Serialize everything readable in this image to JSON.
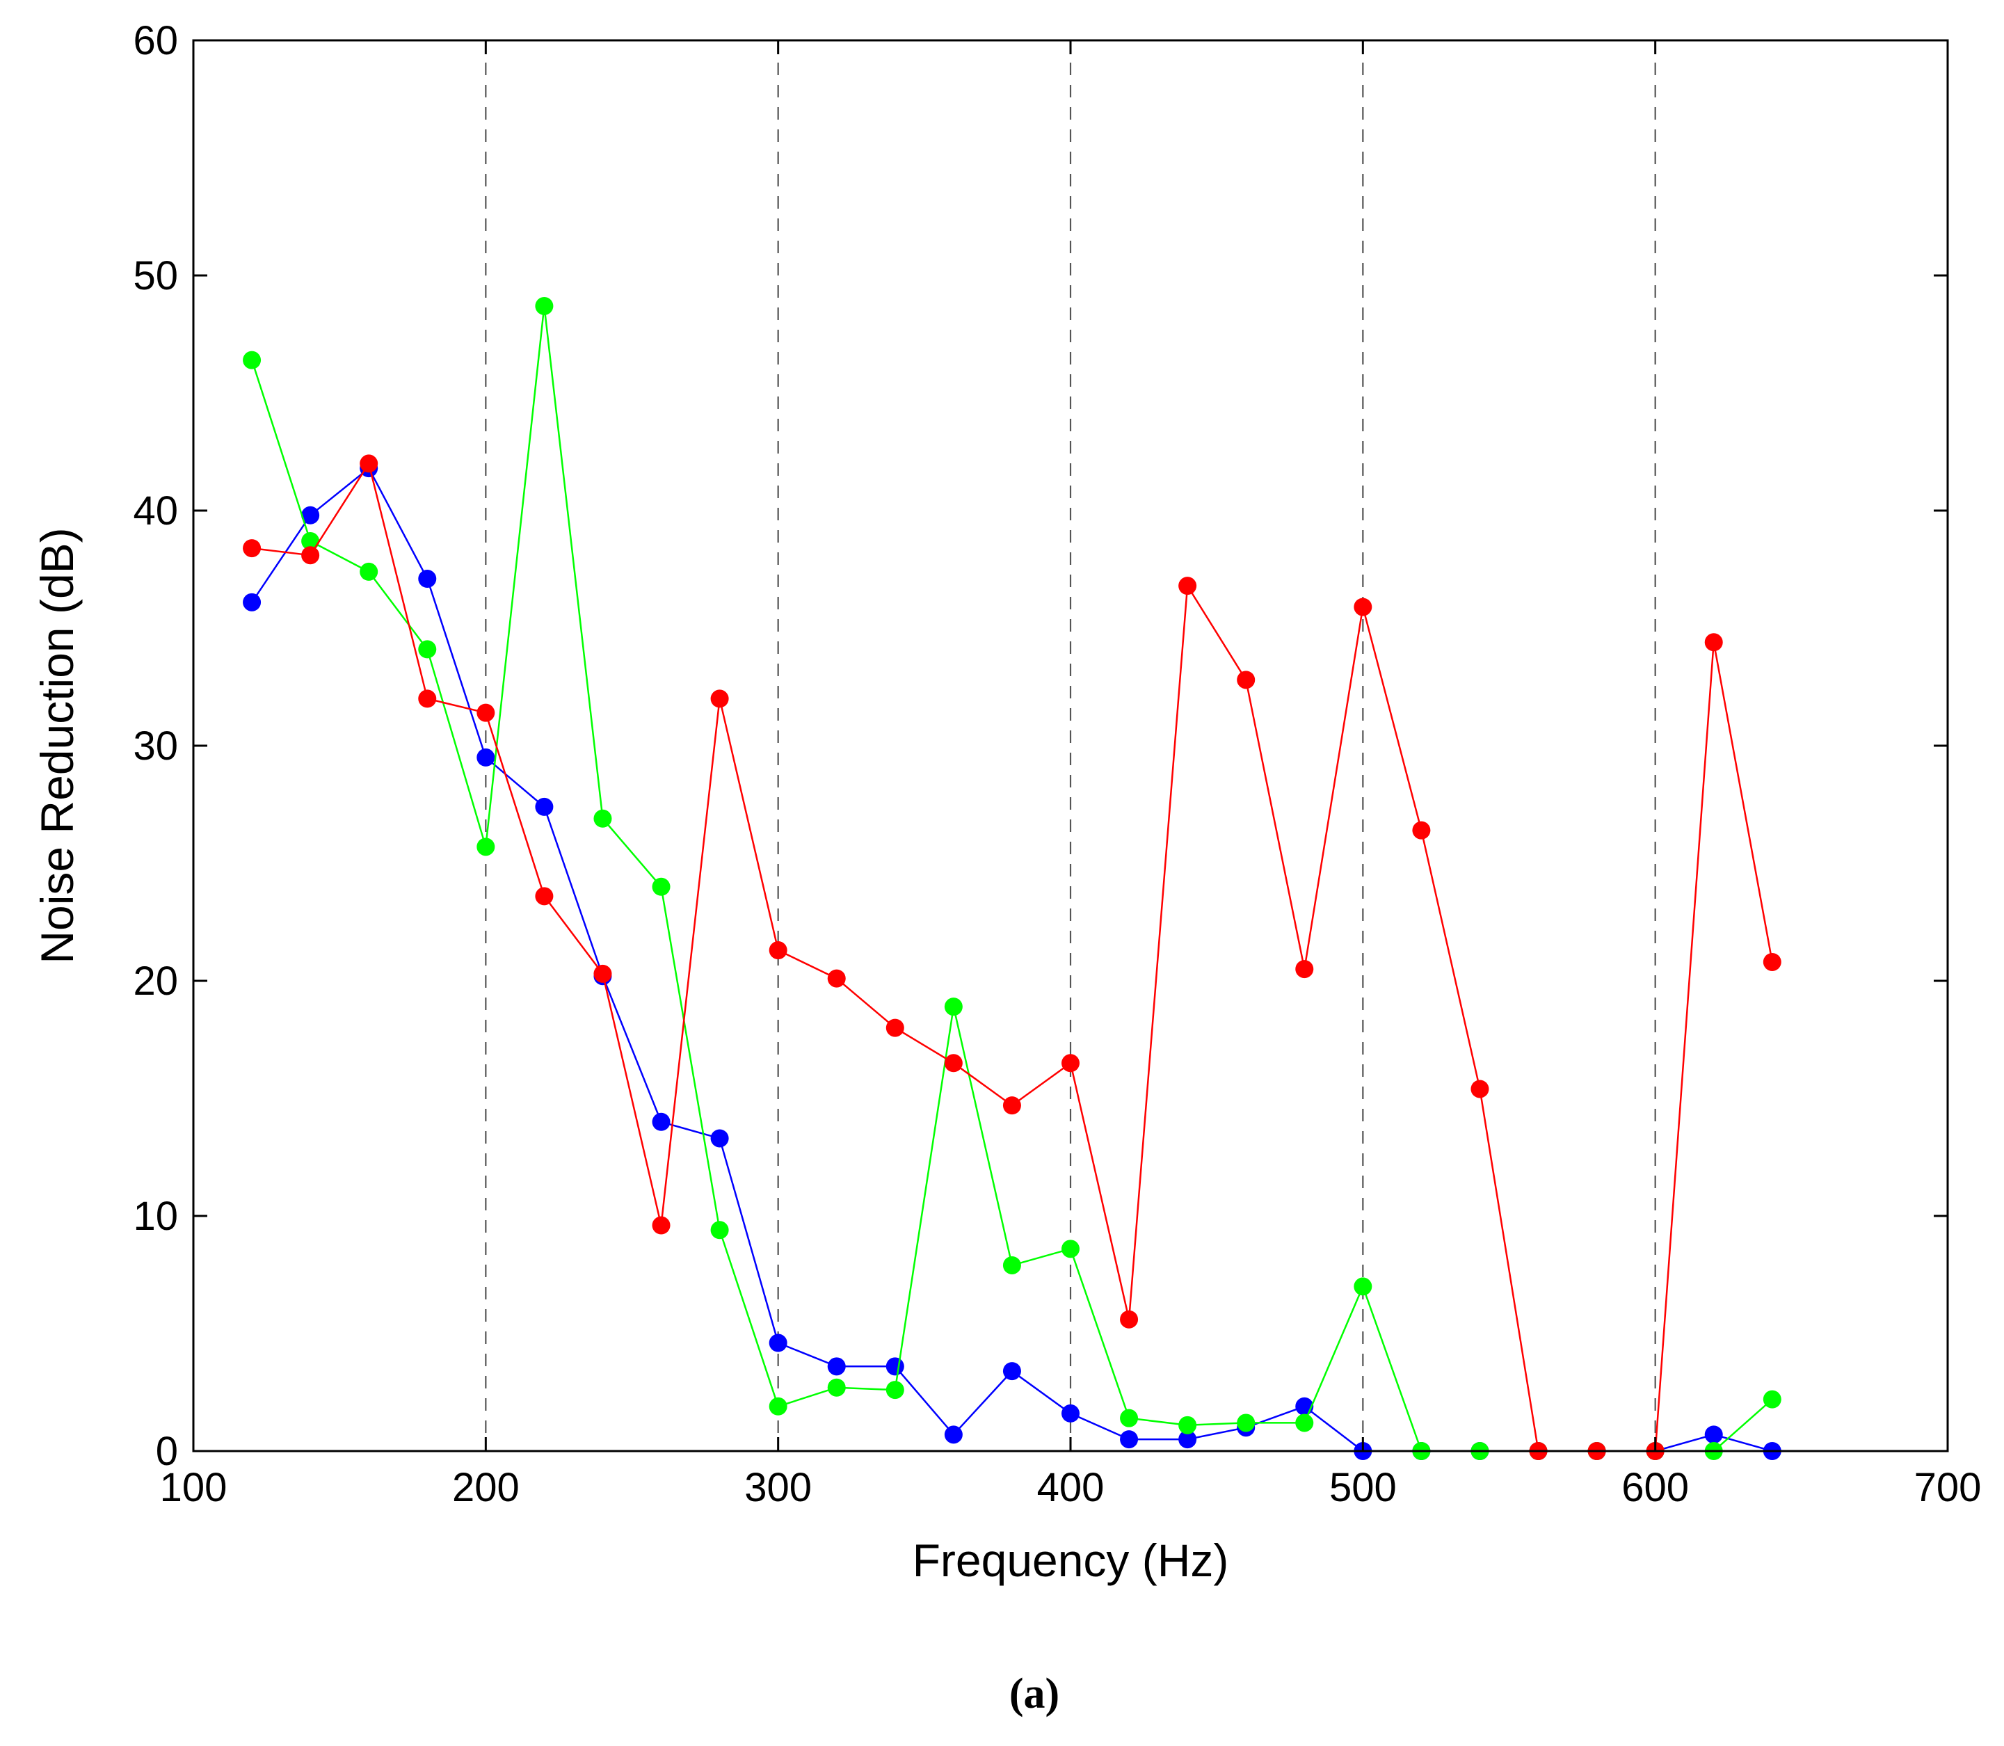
{
  "chart_data": {
    "type": "line",
    "title": "",
    "xlabel": "Frequency (Hz)",
    "ylabel": "Noise Reduction (dB)",
    "xlim": [
      100,
      700
    ],
    "ylim": [
      0,
      60
    ],
    "xticks": [
      100,
      200,
      300,
      400,
      500,
      600,
      700
    ],
    "yticks": [
      0,
      10,
      20,
      30,
      40,
      50,
      60
    ],
    "vertical_gridlines": [
      200,
      300,
      400,
      500,
      600
    ],
    "x": [
      120,
      140,
      160,
      180,
      200,
      220,
      240,
      260,
      280,
      300,
      320,
      340,
      360,
      380,
      400,
      420,
      440,
      460,
      480,
      500,
      520,
      540,
      560,
      580,
      600,
      620,
      640
    ],
    "series": [
      {
        "name": "blue",
        "color": "#0000ff",
        "values": [
          36.1,
          39.8,
          41.8,
          37.1,
          29.5,
          27.4,
          20.2,
          14.0,
          13.3,
          4.6,
          3.6,
          3.6,
          0.7,
          3.4,
          1.6,
          0.5,
          0.5,
          1.0,
          1.9,
          0.0,
          0.0,
          0.0,
          0.0,
          0.0,
          0.0,
          0.7,
          0.0
        ]
      },
      {
        "name": "green",
        "color": "#00ff00",
        "values": [
          46.4,
          38.7,
          37.4,
          34.1,
          25.7,
          48.7,
          26.9,
          24.0,
          9.4,
          1.9,
          2.7,
          2.6,
          18.9,
          7.9,
          8.6,
          1.4,
          1.1,
          1.2,
          1.2,
          7.0,
          0.0,
          0.0,
          0.0,
          0.0,
          0.0,
          0.0,
          2.2
        ]
      },
      {
        "name": "red",
        "color": "#ff0000",
        "values": [
          38.4,
          38.1,
          42.0,
          32.0,
          31.4,
          23.6,
          20.3,
          9.6,
          32.0,
          21.3,
          20.1,
          18.0,
          16.5,
          14.7,
          16.5,
          5.6,
          36.8,
          32.8,
          20.5,
          35.9,
          26.4,
          15.4,
          0.0,
          0.0,
          0.0,
          34.4,
          20.8
        ]
      }
    ],
    "caption": "(a)"
  }
}
